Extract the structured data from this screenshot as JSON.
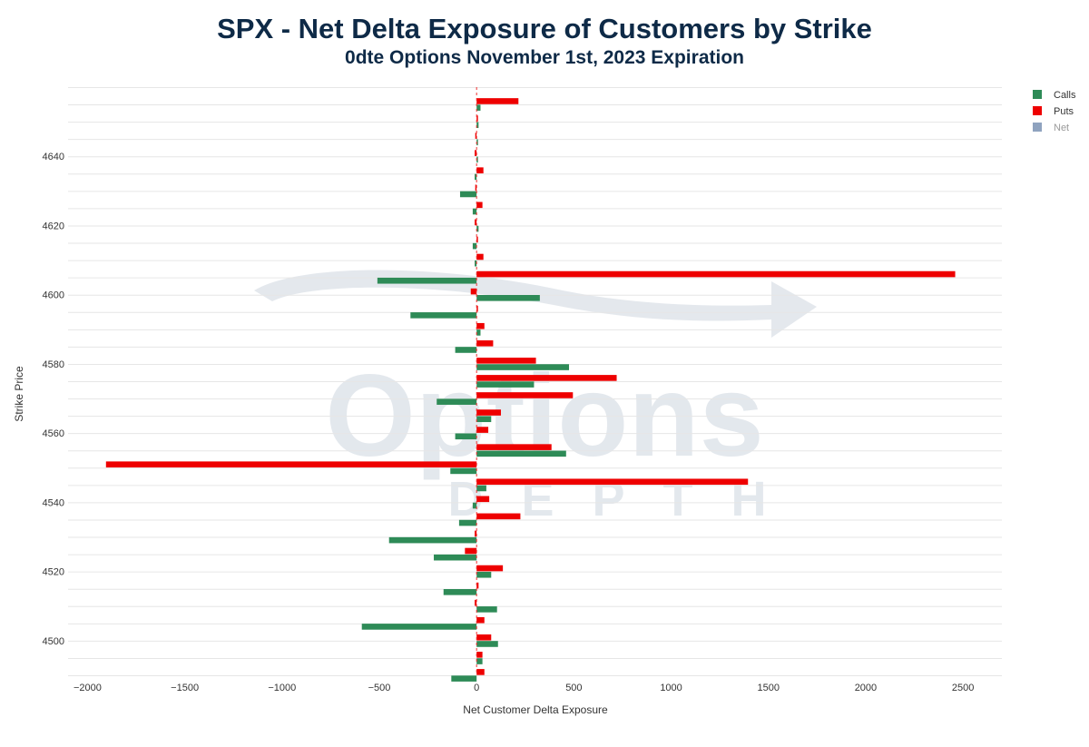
{
  "chart_data": {
    "type": "bar",
    "orientation": "horizontal",
    "title": "SPX - Net Delta Exposure of Customers by Strike",
    "subtitle": "0dte Options November 1st, 2023 Expiration",
    "xlabel": "Net Customer Delta Exposure",
    "ylabel": "Strike Price",
    "xlim": [
      -2100,
      2700
    ],
    "ylim": [
      4490,
      4660
    ],
    "x_ticks": [
      -2000,
      -1500,
      -1000,
      -500,
      0,
      500,
      1000,
      1500,
      2000,
      2500
    ],
    "x_tick_labels": [
      "−2000",
      "−1500",
      "−1000",
      "−500",
      "0",
      "500",
      "1000",
      "1500",
      "2000",
      "2500"
    ],
    "y_ticks": [
      4500,
      4520,
      4540,
      4560,
      4580,
      4600,
      4620,
      4640
    ],
    "y_tick_labels": [
      "4500",
      "4520",
      "4540",
      "4560",
      "4580",
      "4600",
      "4620",
      "4640"
    ],
    "grid": true,
    "legend_position": "top-right",
    "strikes": [
      4490,
      4495,
      4500,
      4505,
      4510,
      4515,
      4520,
      4525,
      4530,
      4535,
      4540,
      4545,
      4550,
      4555,
      4560,
      4565,
      4570,
      4575,
      4580,
      4585,
      4590,
      4595,
      4600,
      4605,
      4610,
      4615,
      4620,
      4625,
      4630,
      4635,
      4640,
      4645,
      4650,
      4655
    ],
    "series": [
      {
        "name": "Calls",
        "color": "#2e8b57",
        "values": [
          -130,
          30,
          110,
          -590,
          105,
          -170,
          75,
          -220,
          -450,
          -90,
          -20,
          50,
          -135,
          460,
          -110,
          75,
          -205,
          295,
          475,
          -110,
          20,
          -340,
          325,
          -510,
          -10,
          -20,
          10,
          -20,
          -85,
          -10,
          0,
          0,
          10,
          20
        ]
      },
      {
        "name": "Puts",
        "color": "#ee0000",
        "values": [
          40,
          30,
          75,
          40,
          -10,
          10,
          135,
          -60,
          -10,
          225,
          65,
          1395,
          -1905,
          385,
          60,
          125,
          495,
          720,
          305,
          85,
          40,
          0,
          -30,
          2460,
          35,
          0,
          -10,
          30,
          -5,
          35,
          -10,
          -5,
          0,
          215
        ]
      },
      {
        "name": "Net",
        "color": "#8fa3bf",
        "values": []
      }
    ],
    "watermark": {
      "line1": "Options",
      "line2": "DEPTH"
    }
  }
}
